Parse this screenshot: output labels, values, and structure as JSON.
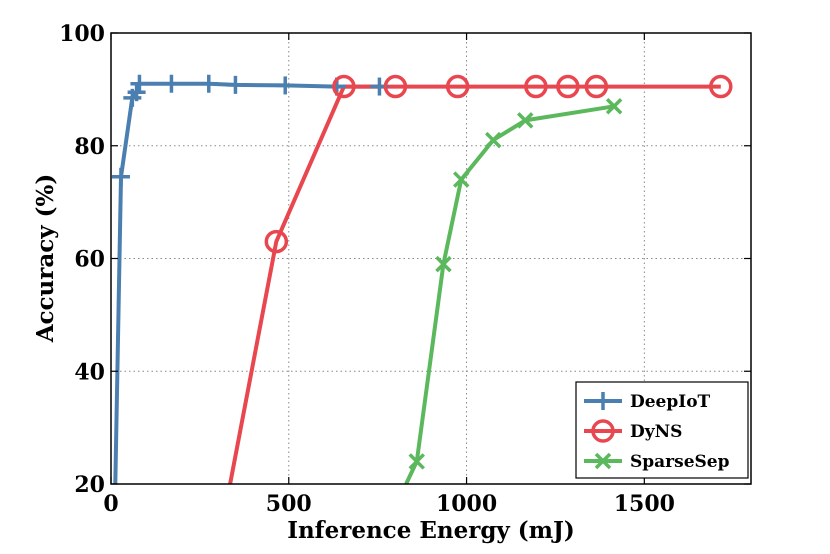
{
  "chart_data": {
    "type": "line",
    "title": "",
    "xlabel": "Inference Energy (mJ)",
    "ylabel": "Accuracy (%)",
    "xlim": [
      0,
      1800
    ],
    "ylim": [
      20,
      100
    ],
    "xticks": [
      0,
      500,
      1000,
      1500
    ],
    "yticks": [
      20,
      40,
      60,
      80,
      100
    ],
    "grid": "dotted",
    "legend_position": "bottom-right",
    "series": [
      {
        "name": "DeepIoT",
        "color": "#4a7fb0",
        "marker": "plus",
        "x": [
          12,
          28,
          60,
          72,
          80,
          170,
          275,
          350,
          490,
          635,
          755
        ],
        "y": [
          20,
          74.5,
          88.5,
          89.5,
          91,
          91,
          91,
          90.8,
          90.7,
          90.5,
          90.5
        ]
      },
      {
        "name": "DyNS",
        "color": "#e8474f",
        "marker": "circle",
        "x": [
          335,
          465,
          655,
          800,
          975,
          1195,
          1285,
          1365,
          1715
        ],
        "y": [
          20,
          63,
          90.5,
          90.5,
          90.5,
          90.5,
          90.5,
          90.5,
          90.5
        ]
      },
      {
        "name": "SparseSep",
        "color": "#5cb85c",
        "marker": "x",
        "x": [
          830,
          860,
          935,
          985,
          1075,
          1165,
          1415
        ],
        "y": [
          20,
          24,
          59,
          74,
          81,
          84.5,
          87
        ]
      }
    ]
  }
}
